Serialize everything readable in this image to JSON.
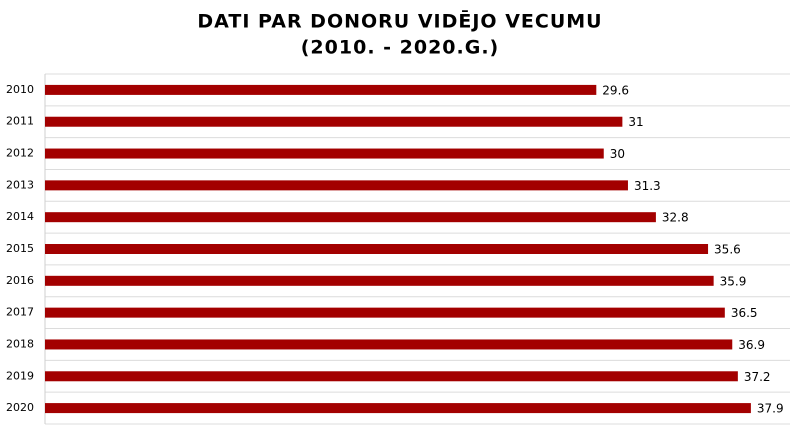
{
  "chart_data": {
    "type": "bar",
    "orientation": "horizontal",
    "title": [
      "DATI PAR DONORU VIDĒJO VECUMU",
      "(2010. - 2020.G.)"
    ],
    "categories": [
      "2010",
      "2011",
      "2012",
      "2013",
      "2014",
      "2015",
      "2016",
      "2017",
      "2018",
      "2019",
      "2020"
    ],
    "values": [
      29.6,
      31,
      30,
      31.3,
      32.8,
      35.6,
      35.9,
      36.5,
      36.9,
      37.2,
      37.9
    ],
    "color": "#a30000",
    "xlim": [
      0,
      40
    ]
  }
}
